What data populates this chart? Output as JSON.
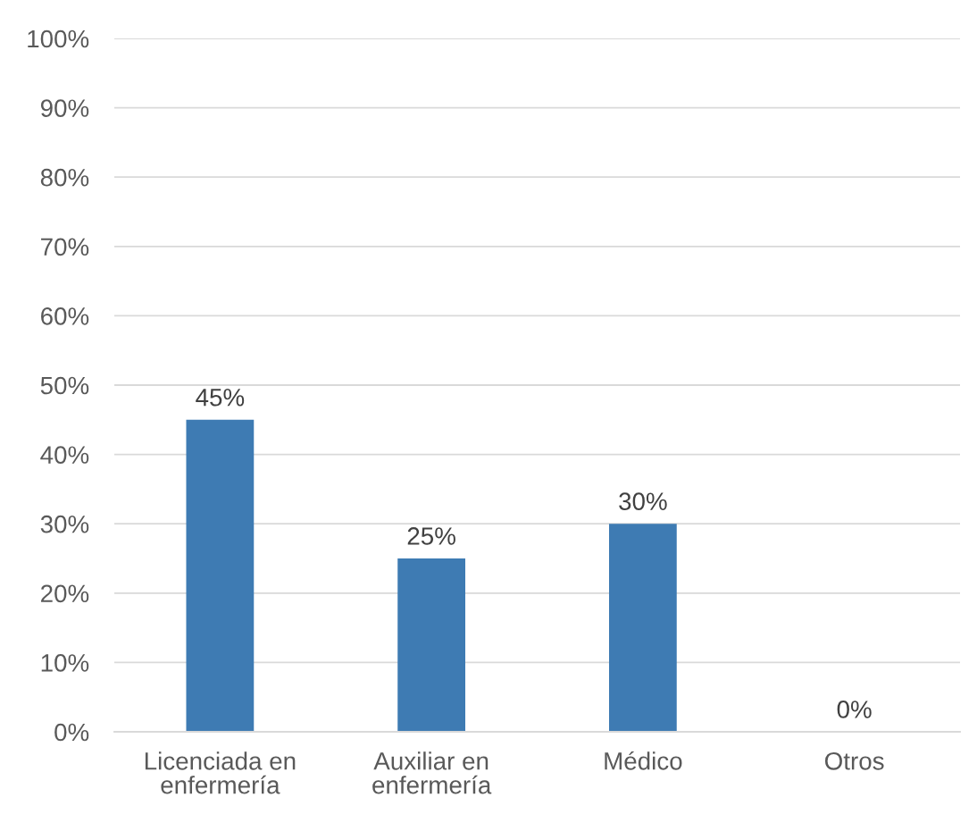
{
  "chart_data": {
    "type": "bar",
    "categories": [
      "Licenciada en\nenfermería",
      "Auxiliar en\nenfermería",
      "Médico",
      "Otros"
    ],
    "values": [
      45,
      25,
      30,
      0
    ],
    "value_labels": [
      "45%",
      "25%",
      "30%",
      "0%"
    ],
    "color": "#3e7bb3",
    "ylim": [
      0,
      100
    ],
    "yticks": [
      {
        "value": 0,
        "label": "0%"
      },
      {
        "value": 10,
        "label": "10%"
      },
      {
        "value": 20,
        "label": "20%"
      },
      {
        "value": 30,
        "label": "30%"
      },
      {
        "value": 40,
        "label": "40%"
      },
      {
        "value": 50,
        "label": "50%"
      },
      {
        "value": 60,
        "label": "60%"
      },
      {
        "value": 70,
        "label": "70%"
      },
      {
        "value": 80,
        "label": "80%"
      },
      {
        "value": 90,
        "label": "90%"
      },
      {
        "value": 100,
        "label": "100%"
      }
    ],
    "grid": "y"
  }
}
